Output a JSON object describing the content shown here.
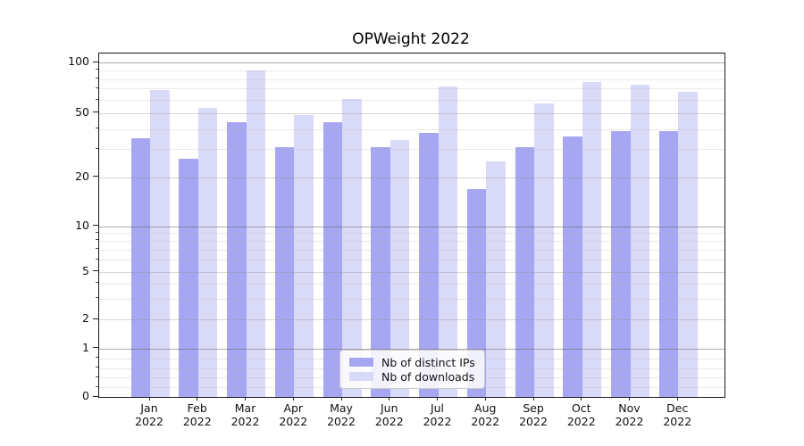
{
  "chart_data": {
    "type": "bar",
    "title": "OPWeight 2022",
    "categories": [
      "Jan 2022",
      "Feb 2022",
      "Mar 2022",
      "Apr 2022",
      "May 2022",
      "Jun 2022",
      "Jul 2022",
      "Aug 2022",
      "Sep 2022",
      "Oct 2022",
      "Nov 2022",
      "Dec 2022"
    ],
    "series": [
      {
        "name": "Nb of distinct IPs",
        "color": "#a6a6f2",
        "values": [
          35,
          26,
          44,
          31,
          44,
          31,
          38,
          17,
          31,
          36,
          39,
          39
        ]
      },
      {
        "name": "Nb of downloads",
        "color": "#d9d9f8",
        "values": [
          69,
          54,
          90,
          49,
          61,
          34,
          72,
          25,
          57,
          77,
          74,
          67
        ]
      }
    ],
    "xlabel": "",
    "ylabel": "",
    "yscale": "symlog",
    "y_ticks": [
      0,
      1,
      2,
      5,
      10,
      20,
      50,
      100
    ],
    "ylim": [
      0,
      110
    ],
    "grid": true,
    "legend_position": "lower center"
  }
}
